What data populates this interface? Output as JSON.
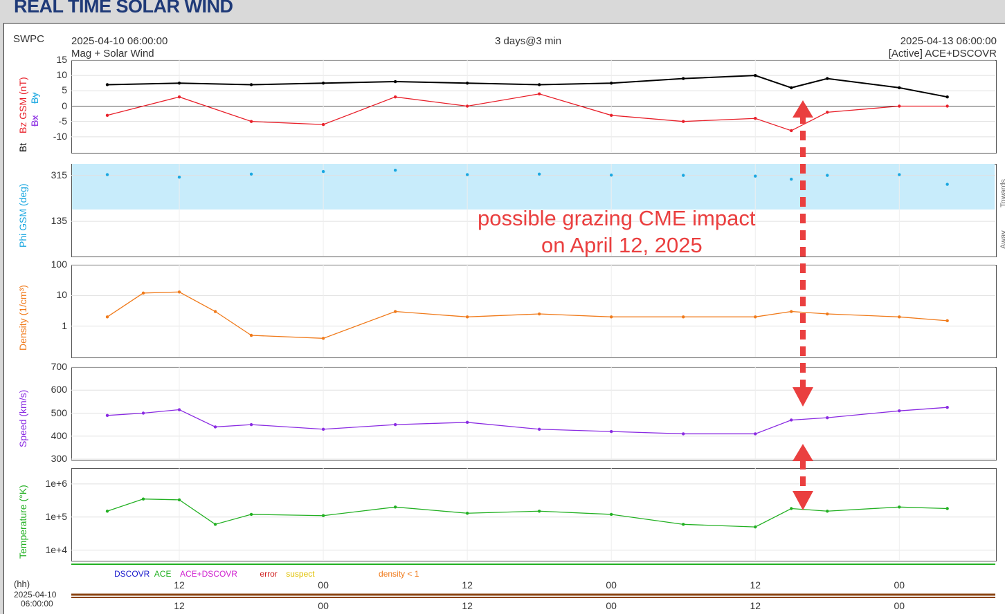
{
  "page_title": "REAL TIME SOLAR WIND",
  "header": {
    "source": "SWPC",
    "start": "2025-04-10 06:00:00",
    "span": "3 days@3 min",
    "end": "2025-04-13 06:00:00",
    "subtitle_left": "Mag + Solar Wind",
    "subtitle_right": "[Active] ACE+DSCOVR"
  },
  "annotation": {
    "line1": "possible grazing CME impact",
    "line2": "on April 12, 2025"
  },
  "legend": {
    "dscovr": "DSCOVR",
    "ace": "ACE",
    "ace_dscovr": "ACE+DSCOVR",
    "error": "error",
    "suspect": "suspect",
    "density": "density < 1"
  },
  "timeline": {
    "hh": "(hh)",
    "date": "2025-04-10",
    "time": "06:00:00"
  },
  "side_labels": {
    "towards": "Towards",
    "away": "Away"
  },
  "colors": {
    "bt": "#000000",
    "bz": "#e8202a",
    "phi": "#1aa7e0",
    "density": "#f07a1a",
    "speed": "#8a2be2",
    "temp": "#22b022",
    "annotation": "#ea3f3f"
  },
  "chart_data": [
    {
      "type": "line",
      "title": "",
      "ylabel_parts": [
        "Bt",
        "Bz GSM (nT)",
        "Bx",
        "By"
      ],
      "yticks": [
        "15",
        "10",
        "5",
        "0",
        "-5",
        "-10"
      ],
      "ylim": [
        -15,
        15
      ],
      "x": [
        "2025-04-10 06:00",
        "2025-04-10 12:00",
        "2025-04-10 18:00",
        "2025-04-11 00:00",
        "2025-04-11 06:00",
        "2025-04-11 12:00",
        "2025-04-11 18:00",
        "2025-04-12 00:00",
        "2025-04-12 06:00",
        "2025-04-12 12:00",
        "2025-04-12 15:00",
        "2025-04-12 18:00",
        "2025-04-13 00:00",
        "2025-04-13 04:00"
      ],
      "series": [
        {
          "name": "Bt",
          "values": [
            7,
            7.5,
            7,
            7.5,
            8,
            7.5,
            7,
            7.5,
            9,
            10,
            6,
            9,
            6,
            3
          ]
        },
        {
          "name": "Bz GSM",
          "values": [
            -3,
            3,
            -5,
            -6,
            3,
            0,
            4,
            -3,
            -5,
            -4,
            -8,
            -2,
            0,
            0
          ]
        }
      ]
    },
    {
      "type": "scatter",
      "ylabel": "Phi GSM (deg)",
      "yticks": [
        "315",
        "135"
      ],
      "ylim": [
        0,
        360
      ],
      "x": [
        "2025-04-10 06:00",
        "2025-04-10 12:00",
        "2025-04-10 18:00",
        "2025-04-11 00:00",
        "2025-04-11 06:00",
        "2025-04-11 12:00",
        "2025-04-11 18:00",
        "2025-04-12 00:00",
        "2025-04-12 06:00",
        "2025-04-12 12:00",
        "2025-04-12 15:00",
        "2025-04-12 18:00",
        "2025-04-13 00:00",
        "2025-04-13 04:00"
      ],
      "series": [
        {
          "name": "Phi",
          "values": [
            318,
            308,
            320,
            330,
            335,
            318,
            320,
            316,
            315,
            312,
            300,
            315,
            318,
            280
          ]
        }
      ]
    },
    {
      "type": "line",
      "ylabel": "Density (1/cm³)",
      "yticks": [
        "100",
        "10",
        "1"
      ],
      "ylim": [
        0.1,
        100
      ],
      "yscale": "log",
      "x": [
        "2025-04-10 06:00",
        "2025-04-10 09:00",
        "2025-04-10 12:00",
        "2025-04-10 15:00",
        "2025-04-10 18:00",
        "2025-04-11 00:00",
        "2025-04-11 06:00",
        "2025-04-11 12:00",
        "2025-04-11 18:00",
        "2025-04-12 00:00",
        "2025-04-12 06:00",
        "2025-04-12 12:00",
        "2025-04-12 15:00",
        "2025-04-12 18:00",
        "2025-04-13 00:00",
        "2025-04-13 04:00"
      ],
      "series": [
        {
          "name": "Density",
          "values": [
            2,
            12,
            13,
            3,
            0.5,
            0.4,
            3,
            2,
            2.5,
            2,
            2,
            2,
            3,
            2.5,
            2,
            1.5
          ]
        }
      ]
    },
    {
      "type": "line",
      "ylabel": "Speed (km/s)",
      "yticks": [
        "700",
        "600",
        "500",
        "400",
        "300"
      ],
      "ylim": [
        300,
        700
      ],
      "x": [
        "2025-04-10 06:00",
        "2025-04-10 09:00",
        "2025-04-10 12:00",
        "2025-04-10 15:00",
        "2025-04-10 18:00",
        "2025-04-11 00:00",
        "2025-04-11 06:00",
        "2025-04-11 12:00",
        "2025-04-11 18:00",
        "2025-04-12 00:00",
        "2025-04-12 06:00",
        "2025-04-12 12:00",
        "2025-04-12 15:00",
        "2025-04-12 18:00",
        "2025-04-13 00:00",
        "2025-04-13 04:00"
      ],
      "series": [
        {
          "name": "Speed",
          "values": [
            490,
            500,
            515,
            440,
            450,
            430,
            450,
            460,
            430,
            420,
            410,
            410,
            470,
            480,
            510,
            525
          ]
        }
      ]
    },
    {
      "type": "line",
      "ylabel": "Temperature (°K)",
      "yticks": [
        "1e+6",
        "1e+5",
        "1e+4"
      ],
      "ylim": [
        5000,
        3000000
      ],
      "yscale": "log",
      "x": [
        "2025-04-10 06:00",
        "2025-04-10 09:00",
        "2025-04-10 12:00",
        "2025-04-10 15:00",
        "2025-04-10 18:00",
        "2025-04-11 00:00",
        "2025-04-11 06:00",
        "2025-04-11 12:00",
        "2025-04-11 18:00",
        "2025-04-12 00:00",
        "2025-04-12 06:00",
        "2025-04-12 12:00",
        "2025-04-12 15:00",
        "2025-04-12 18:00",
        "2025-04-13 00:00",
        "2025-04-13 04:00"
      ],
      "series": [
        {
          "name": "Temperature",
          "values": [
            150000,
            350000,
            330000,
            60000,
            120000,
            110000,
            200000,
            130000,
            150000,
            120000,
            60000,
            50000,
            180000,
            150000,
            200000,
            180000
          ]
        }
      ]
    }
  ],
  "x_ticks": [
    "12",
    "00",
    "12",
    "00",
    "12",
    "00"
  ]
}
